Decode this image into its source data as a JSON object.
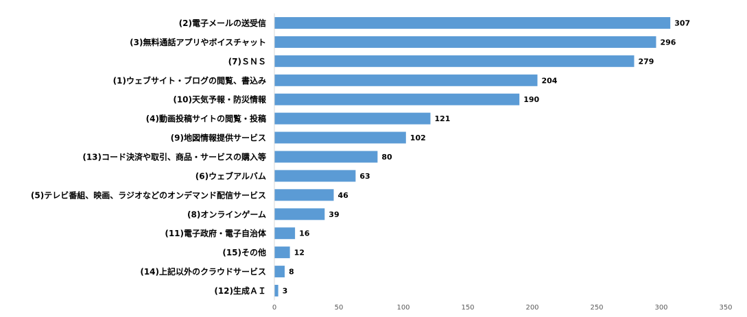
{
  "chart_data": {
    "type": "bar",
    "orientation": "horizontal",
    "categories": [
      "(2)電子メールの送受信",
      "(3)無料通話アプリやボイスチャット",
      "(7)ＳＮＳ",
      "(1)ウェブサイト・ブログの閲覧、書込み",
      "(10)天気予報・防災情報",
      "(4)動画投稿サイトの閲覧・投稿",
      "(9)地図情報提供サービス",
      "(13)コード決済や取引、商品・サービスの購入等",
      "(6)ウェブアルバム",
      "(5)テレビ番組、映画、ラジオなどのオンデマンド配信サービス",
      "(8)オンラインゲーム",
      "(11)電子政府・電子自治体",
      "(15)その他",
      "(14)上記以外のクラウドサービス",
      "(12)生成ＡＩ"
    ],
    "values": [
      307,
      296,
      279,
      204,
      190,
      121,
      102,
      80,
      63,
      46,
      39,
      16,
      12,
      8,
      3
    ],
    "xlim": [
      0,
      350
    ],
    "xticks": [
      "0",
      "50",
      "100",
      "150",
      "200",
      "250",
      "300",
      "350"
    ],
    "bar_color": "#5b9bd5",
    "grid": false,
    "legend": "none"
  }
}
